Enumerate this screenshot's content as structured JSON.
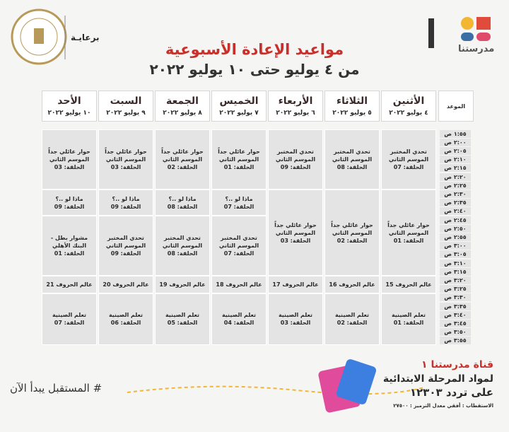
{
  "header": {
    "brand": "مدرستنا",
    "sponsor": "برعايـة",
    "title": "مواعيد الإعادة الأسبوعية",
    "subtitle": "من ٤ يوليو حتى ١٠ يوليو ٢٠٢٢"
  },
  "table": {
    "time_header": "الموعد",
    "times": [
      "١:٥٥ ص",
      "٢:٠٠ ص",
      "٢:٠٥ ص",
      "٢:١٠ ص",
      "٢:١٥ ص",
      "٢:٢٠ ص",
      "٢:٢٥ ص",
      "٢:٣٠ ص",
      "٢:٣٥ ص",
      "٢:٤٠ ص",
      "٢:٤٥ ص",
      "٢:٥٠ ص",
      "٢:٥٥ ص",
      "٣:٠٠ ص",
      "٣:٠٥ ص",
      "٣:١٠ ص",
      "٣:١٥ ص",
      "٣:٢٠ ص",
      "٣:٢٥ ص",
      "٣:٣٠ ص",
      "٣:٣٥ ص",
      "٣:٤٠ ص",
      "٣:٤٥ ص",
      "٣:٥٠ ص",
      "٣:٥٥ ص"
    ],
    "days": [
      {
        "name": "الأثنين",
        "date": "٤ يوليو ٢٠٢٢",
        "programs": [
          {
            "title": "تحدي المختبر الموسم الثاني",
            "episode": "الحلقة: 07"
          },
          {
            "title": "حوار عائلي جداً الموسم الثاني",
            "episode": "الحلقة: 01"
          },
          {
            "title": "عالم الحروف 15"
          },
          {
            "title": "تعلم الصينية",
            "episode": "الحلقة: 01"
          }
        ]
      },
      {
        "name": "الثلاثاء",
        "date": "٥ يوليو ٢٠٢٢",
        "programs": [
          {
            "title": "تحدي المختبر الموسم الثاني",
            "episode": "الحلقة: 08"
          },
          {
            "title": "حوار عائلي جداً الموسم الثاني",
            "episode": "الحلقة: 02"
          },
          {
            "title": "عالم الحروف 16"
          },
          {
            "title": "تعلم الصينية",
            "episode": "الحلقة: 02"
          }
        ]
      },
      {
        "name": "الأربعاء",
        "date": "٦ يوليو ٢٠٢٢",
        "programs": [
          {
            "title": "تحدي المختبر الموسم الثاني",
            "episode": "الحلقة: 09"
          },
          {
            "title": "حوار عائلي جداً الموسم الثاني",
            "episode": "الحلقة: 03"
          },
          {
            "title": "عالم الحروف 17"
          },
          {
            "title": "تعلم الصينية",
            "episode": "الحلقة: 03"
          }
        ]
      },
      {
        "name": "الخميس",
        "date": "٧ يوليو ٢٠٢٢",
        "programs": [
          {
            "title": "حوار عائلي جداً الموسم الثاني",
            "episode": "الحلقة: 01"
          },
          {
            "title": "ماذا لو ..؟",
            "episode": "الحلقة: 07"
          },
          {
            "title": "تحدي المختبر الموسم الثاني",
            "episode": "الحلقة: 07"
          },
          {
            "title": "عالم الحروف 18"
          },
          {
            "title": "تعلم الصينية",
            "episode": "الحلقة: 04"
          }
        ]
      },
      {
        "name": "الجمعة",
        "date": "٨ يوليو ٢٠٢٢",
        "programs": [
          {
            "title": "حوار عائلي جداً الموسم الثاني",
            "episode": "الحلقة: 02"
          },
          {
            "title": "ماذا لو ..؟",
            "episode": "الحلقة: 08"
          },
          {
            "title": "تحدي المختبر الموسم الثاني",
            "episode": "الحلقة: 08"
          },
          {
            "title": "عالم الحروف 19"
          },
          {
            "title": "تعلم الصينية",
            "episode": "الحلقة: 05"
          }
        ]
      },
      {
        "name": "السبت",
        "date": "٩ يوليو ٢٠٢٢",
        "programs": [
          {
            "title": "حوار عائلي جداً الموسم الثاني",
            "episode": "الحلقة: 03"
          },
          {
            "title": "ماذا لو ..؟",
            "episode": "الحلقة: 09"
          },
          {
            "title": "تحدي المختبر الموسم الثاني",
            "episode": "الحلقة: 09"
          },
          {
            "title": "عالم الحروف 20"
          },
          {
            "title": "تعلم الصينية",
            "episode": "الحلقة: 06"
          }
        ]
      },
      {
        "name": "الأحد",
        "date": "١٠ يوليو ٢٠٢٢",
        "programs": [
          {
            "title": "حوار عائلي جداً الموسم الثاني",
            "episode": "الحلقة: 03"
          },
          {
            "title": "ماذا لو ..؟",
            "episode": "الحلقة: 09"
          },
          {
            "title": "مشوار بطل - البنك الأهلي",
            "episode": "الحلقة: 01"
          },
          {
            "title": "عالم الحروف 21"
          },
          {
            "title": "تعلم الصينية",
            "episode": "الحلقة: 07"
          }
        ]
      }
    ]
  },
  "footer": {
    "slogan": "# المستقبل يبدأ الآن",
    "channel": "قناة مدرستنا ١",
    "subject": "لمواد المرحلة الابتدائية",
    "frequency": "على تردد ١٢٣٠٣",
    "polarization": "الاستقطاب : أفقي معدل الترميز : ٢٧٥٠٠"
  }
}
